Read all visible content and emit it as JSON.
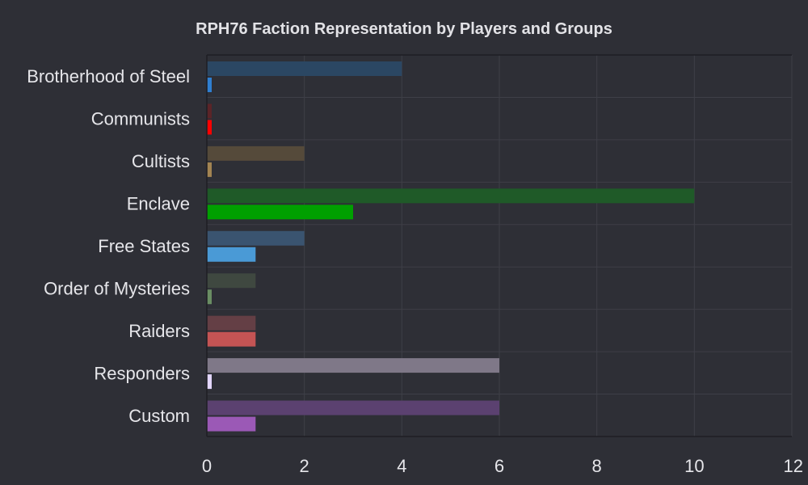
{
  "chart_data": {
    "type": "bar",
    "orientation": "horizontal",
    "title": "RPH76 Faction Representation by Players and Groups",
    "categories": [
      "Brotherhood of Steel",
      "Communists",
      "Cultists",
      "Enclave",
      "Free States",
      "Order of Mysteries",
      "Raiders",
      "Responders",
      "Custom"
    ],
    "series": [
      {
        "values": [
          4,
          0,
          2,
          10,
          2,
          1,
          1,
          6,
          6
        ],
        "colors": [
          "#2b4763",
          "#5b2428",
          "#554a3a",
          "#1f5a28",
          "#3a5470",
          "#3f4840",
          "#643f45",
          "#7f7888",
          "#5b4170"
        ]
      },
      {
        "values": [
          0,
          0,
          0,
          3,
          1,
          0,
          1,
          0,
          1
        ],
        "colors": [
          "#2f7fd1",
          "#ff0000",
          "#a28452",
          "#00a000",
          "#4a9ad6",
          "#6a8d63",
          "#c45454",
          "#e3d6ff",
          "#9b59b6"
        ]
      }
    ],
    "xlim": [
      0,
      12
    ],
    "xticks": [
      0,
      2,
      4,
      6,
      8,
      10,
      12
    ],
    "grid": true,
    "legend": "none"
  }
}
